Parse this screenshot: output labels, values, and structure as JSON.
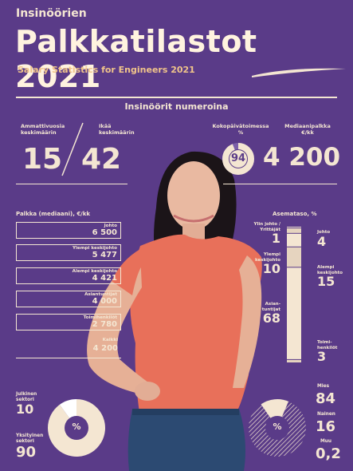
{
  "header": {
    "kicker": "Insinöörien",
    "title": "Palkkatilastot 2021",
    "subtitle": "Salary Statistics for Engineers 2021"
  },
  "section": {
    "title": "Insinöörit numeroina"
  },
  "stats": {
    "experience": {
      "label": "Ammattivuosia\nkeskimäärin",
      "value": "15"
    },
    "age": {
      "label": "Ikää\nkeskimäärin",
      "value": "42"
    },
    "fulltime": {
      "label": "Kokopäivätoimessa\n%",
      "value": "94"
    },
    "median": {
      "label": "Mediaanipalkka\n€/kk",
      "value": "4 200"
    }
  },
  "salary": {
    "heading": "Palkka (mediaani), €/kk",
    "rows": [
      {
        "label": "Johto",
        "value": "6 500"
      },
      {
        "label": "Ylempi keskijohto",
        "value": "5 477"
      },
      {
        "label": "Alempi keskijohto",
        "value": "4 421"
      },
      {
        "label": "Asiantuntijat",
        "value": "4 000"
      },
      {
        "label": "Toimihenkilöt",
        "value": "2 780"
      },
      {
        "label": "Kaikki",
        "value": "4 200"
      }
    ]
  },
  "position_level": {
    "heading": "Asemataso, %",
    "items": [
      {
        "label": "Ylin johto /\nYrittäjät",
        "value": "1",
        "side": "left",
        "share": 0.01
      },
      {
        "label": "Johto",
        "value": "4",
        "side": "right",
        "share": 0.04
      },
      {
        "label": "Ylempi\nkeskijohto",
        "value": "10",
        "side": "left",
        "share": 0.1
      },
      {
        "label": "Alempi\nkeskijohto",
        "value": "15",
        "side": "right",
        "share": 0.15
      },
      {
        "label": "Asian-\ntuntijat",
        "value": "68",
        "side": "left",
        "share": 0.68
      },
      {
        "label": "Toimi-\nhenkilöt",
        "value": "3",
        "side": "right",
        "share": 0.03
      }
    ]
  },
  "sector": {
    "public_label": "Julkinen\nsektori",
    "public_value": "10",
    "public_share": 0.1,
    "private_label": "Yksityinen\nsektori",
    "private_value": "90",
    "private_share": 0.9,
    "center": "%"
  },
  "gender": {
    "center": "%",
    "male_label": "Mies",
    "male_value": "84",
    "male_share": 0.84,
    "female_label": "Nainen",
    "female_value": "16",
    "female_share": 0.16,
    "other_label": "Muu",
    "other_value": "0,2"
  },
  "colors": {
    "background": "#5a3b88",
    "cream": "#f4e6d2",
    "accent": "#f0c48a",
    "shirt": "#e8705a"
  }
}
